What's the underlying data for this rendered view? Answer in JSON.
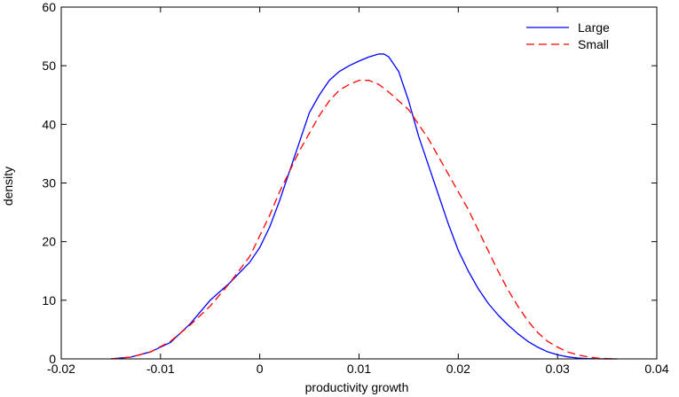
{
  "chart_data": {
    "type": "line",
    "title": "",
    "xlabel": "productivity growth",
    "ylabel": "density",
    "xlim": [
      -0.02,
      0.04
    ],
    "ylim": [
      0,
      60
    ],
    "grid": false,
    "legend_position": "top-right",
    "x_ticks": [
      {
        "value": -0.02,
        "label": "-0.02"
      },
      {
        "value": -0.01,
        "label": "-0.01"
      },
      {
        "value": 0,
        "label": "0"
      },
      {
        "value": 0.01,
        "label": "0.01"
      },
      {
        "value": 0.02,
        "label": "0.02"
      },
      {
        "value": 0.03,
        "label": "0.03"
      },
      {
        "value": 0.04,
        "label": "0.04"
      }
    ],
    "y_ticks": [
      {
        "value": 0,
        "label": "0"
      },
      {
        "value": 10,
        "label": "10"
      },
      {
        "value": 20,
        "label": "20"
      },
      {
        "value": 30,
        "label": "30"
      },
      {
        "value": 40,
        "label": "40"
      },
      {
        "value": 50,
        "label": "50"
      },
      {
        "value": 60,
        "label": "60"
      }
    ],
    "series": [
      {
        "name": "Large",
        "color": "#0000ff",
        "dash": "solid",
        "x": [
          -0.015,
          -0.013,
          -0.011,
          -0.009,
          -0.007,
          -0.005,
          -0.003,
          -0.001,
          0.0,
          0.001,
          0.002,
          0.003,
          0.004,
          0.005,
          0.006,
          0.007,
          0.008,
          0.009,
          0.01,
          0.011,
          0.012,
          0.0125,
          0.013,
          0.014,
          0.015,
          0.016,
          0.017,
          0.018,
          0.019,
          0.02,
          0.021,
          0.022,
          0.023,
          0.024,
          0.025,
          0.026,
          0.027,
          0.028,
          0.029,
          0.03,
          0.031,
          0.032,
          0.033,
          0.034,
          0.035,
          0.036
        ],
        "y": [
          0,
          0.3,
          1.2,
          2.8,
          6.0,
          10.0,
          13.0,
          16.5,
          19.0,
          22.5,
          27.0,
          32.0,
          37.0,
          42.0,
          45.0,
          47.5,
          49.0,
          50.0,
          50.8,
          51.5,
          52.0,
          52.0,
          51.5,
          49.0,
          44.0,
          38.0,
          33.0,
          28.0,
          23.0,
          18.5,
          15.0,
          12.0,
          9.5,
          7.5,
          5.8,
          4.3,
          3.0,
          2.0,
          1.2,
          0.7,
          0.35,
          0.15,
          0.05,
          0.02,
          0.0,
          0.0
        ]
      },
      {
        "name": "Small",
        "color": "#ff0000",
        "dash": "dashed",
        "x": [
          -0.015,
          -0.013,
          -0.011,
          -0.009,
          -0.007,
          -0.005,
          -0.003,
          -0.001,
          0.0,
          0.001,
          0.002,
          0.003,
          0.004,
          0.005,
          0.006,
          0.007,
          0.008,
          0.009,
          0.01,
          0.011,
          0.012,
          0.013,
          0.014,
          0.015,
          0.016,
          0.017,
          0.018,
          0.019,
          0.02,
          0.021,
          0.022,
          0.023,
          0.024,
          0.025,
          0.026,
          0.027,
          0.028,
          0.029,
          0.03,
          0.031,
          0.032,
          0.033,
          0.034,
          0.035,
          0.036
        ],
        "y": [
          0,
          0.3,
          1.2,
          3.0,
          5.8,
          9.0,
          13.0,
          17.5,
          21.0,
          24.5,
          28.5,
          32.0,
          35.5,
          38.5,
          41.5,
          44.0,
          45.8,
          46.8,
          47.5,
          47.5,
          46.8,
          45.5,
          44.0,
          42.5,
          40.0,
          37.5,
          34.5,
          31.5,
          28.5,
          25.5,
          22.0,
          18.5,
          15.0,
          11.8,
          9.0,
          6.5,
          4.5,
          3.0,
          2.0,
          1.2,
          0.7,
          0.35,
          0.15,
          0.05,
          0.0
        ]
      }
    ]
  }
}
